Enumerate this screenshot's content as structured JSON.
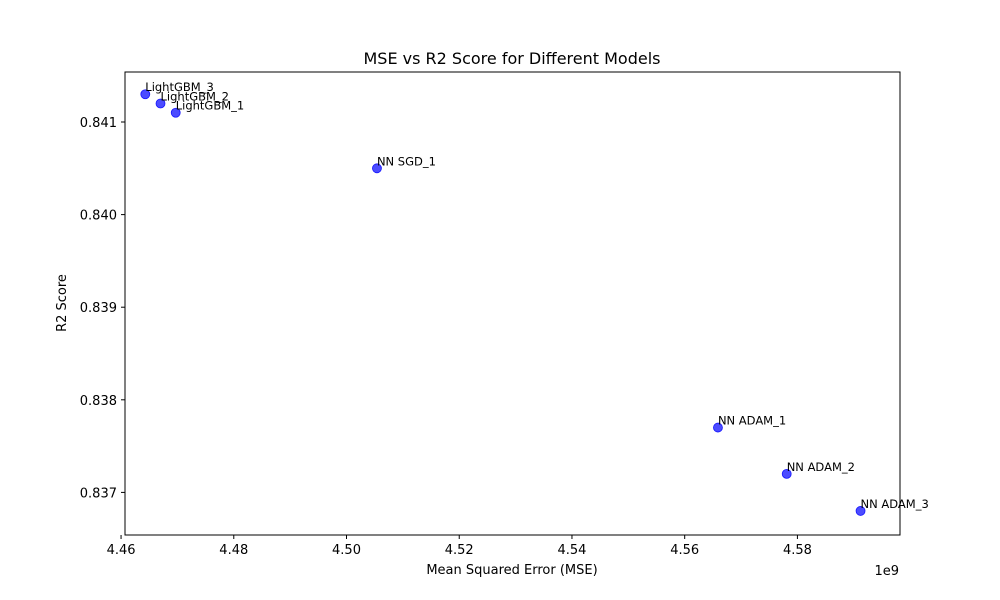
{
  "chart_data": {
    "type": "scatter",
    "title": "MSE vs R2 Score for Different Models",
    "xlabel": "Mean Squared Error (MSE)",
    "ylabel": "R2 Score",
    "x_offset_label": "1e9",
    "xlim": [
      4.4607,
      4.5982
    ],
    "ylim": [
      0.83654,
      0.84154
    ],
    "xticks": [
      {
        "value": 4.46,
        "label": "4.46"
      },
      {
        "value": 4.48,
        "label": "4.48"
      },
      {
        "value": 4.5,
        "label": "4.50"
      },
      {
        "value": 4.52,
        "label": "4.52"
      },
      {
        "value": 4.54,
        "label": "4.54"
      },
      {
        "value": 4.56,
        "label": "4.56"
      },
      {
        "value": 4.58,
        "label": "4.58"
      }
    ],
    "yticks": [
      {
        "value": 0.837,
        "label": "0.837"
      },
      {
        "value": 0.838,
        "label": "0.838"
      },
      {
        "value": 0.839,
        "label": "0.839"
      },
      {
        "value": 0.84,
        "label": "0.840"
      },
      {
        "value": 0.841,
        "label": "0.841"
      }
    ],
    "grid": false,
    "marker_color": "#0000ff",
    "marker_opacity": 0.7,
    "points": [
      {
        "label": "LightGBM_3",
        "x": 4.4643,
        "y": 0.8413
      },
      {
        "label": "LightGBM_2",
        "x": 4.467,
        "y": 0.8412
      },
      {
        "label": "LightGBM_1",
        "x": 4.4697,
        "y": 0.8411
      },
      {
        "label": "NN SGD_1",
        "x": 4.5054,
        "y": 0.8405
      },
      {
        "label": "NN ADAM_1",
        "x": 4.5659,
        "y": 0.8377
      },
      {
        "label": "NN ADAM_2",
        "x": 4.5781,
        "y": 0.8372
      },
      {
        "label": "NN ADAM_3",
        "x": 4.5912,
        "y": 0.8368
      }
    ]
  }
}
